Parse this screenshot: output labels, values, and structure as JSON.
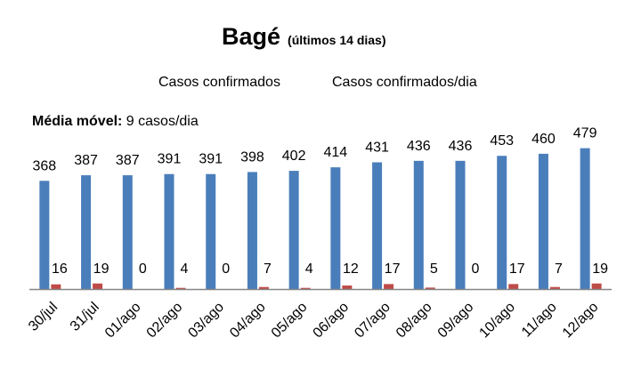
{
  "chart_data": {
    "type": "bar",
    "title": "Bagé",
    "subtitle": "(últimos 14 dias)",
    "note_label": "Média móvel:",
    "note_value": " 9 casos/dia",
    "categories": [
      "30/jul",
      "31/jul",
      "01/ago",
      "02/ago",
      "03/ago",
      "04/ago",
      "05/ago",
      "06/ago",
      "07/ago",
      "08/ago",
      "09/ago",
      "10/ago",
      "11/ago",
      "12/ago"
    ],
    "series": [
      {
        "name": "Casos confirmados",
        "color": "#4a7ebb",
        "values": [
          368,
          387,
          387,
          391,
          391,
          398,
          402,
          414,
          431,
          436,
          436,
          453,
          460,
          479
        ]
      },
      {
        "name": "Casos confirmados/dia",
        "color": "#be4b48",
        "values": [
          16,
          19,
          0,
          4,
          0,
          7,
          4,
          12,
          17,
          5,
          0,
          17,
          7,
          19
        ]
      }
    ],
    "ylim": [
      0,
      620
    ],
    "grid": false,
    "legend_position": "top"
  }
}
